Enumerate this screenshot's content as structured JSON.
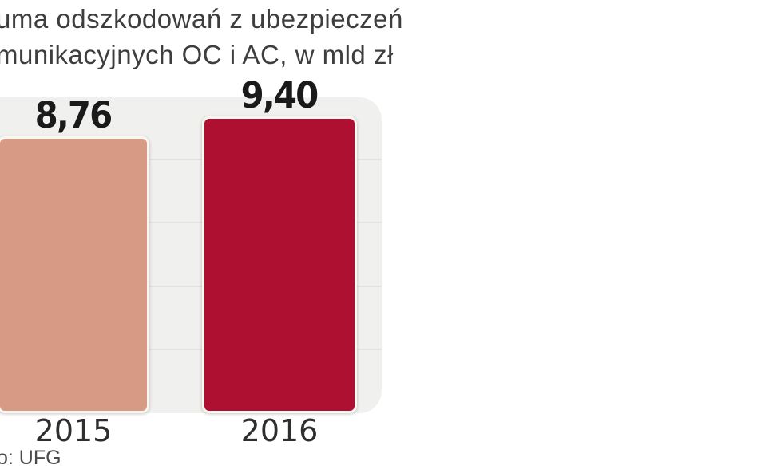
{
  "title": {
    "line1": "uma odszkodowań z ubezpieczeń",
    "line2": "munikacyjnych OC i AC, w mld zł"
  },
  "source": "o: UFG",
  "bars": [
    {
      "category": "2015",
      "value": 8.76,
      "value_label": "8,76",
      "color": "#d79b85"
    },
    {
      "category": "2016",
      "value": 9.4,
      "value_label": "9,40",
      "color": "#ad1030"
    }
  ],
  "colors": {
    "page_background": "#ffffff",
    "panel_background": "#f0f0ee",
    "gridline": "#e3e3e1",
    "title_text": "#3e3e3e",
    "value_text": "#1a1a1a",
    "axis_text": "#2e2e2e",
    "source_text": "#4b4b4b",
    "bar_border": "#fcf6f1"
  },
  "chart_data": {
    "type": "bar",
    "title": "uma odszkodowań z ubezpieczeń munikacyjnych OC i AC, w mld zł",
    "categories": [
      "2015",
      "2016"
    ],
    "values": [
      8.76,
      9.4
    ],
    "value_labels": [
      "8,76",
      "9,40"
    ],
    "bar_colors": [
      "#d79b85",
      "#ad1030"
    ],
    "ylim": [
      0,
      10
    ],
    "grid": true,
    "gridline_values": [
      2,
      4,
      6,
      8
    ],
    "legend": false,
    "source": "o: UFG"
  }
}
